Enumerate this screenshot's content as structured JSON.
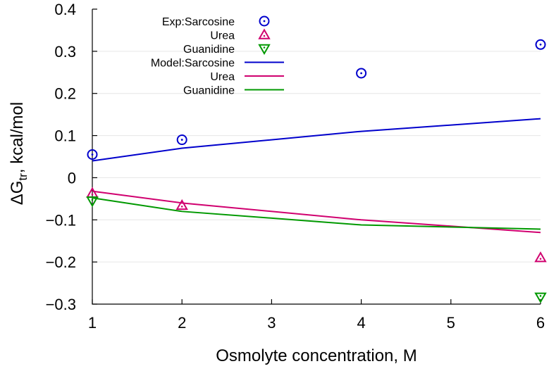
{
  "chart_data": {
    "type": "scatter",
    "xlabel": "Osmolyte concentration, M",
    "ylabel": {
      "delta": "ΔG",
      "sub": "tr",
      "rest": ", kcal/mol"
    },
    "xlim": [
      1,
      6
    ],
    "ylim": [
      -0.3,
      0.4
    ],
    "x_ticks": [
      1,
      2,
      3,
      4,
      5,
      6
    ],
    "y_ticks": [
      -0.3,
      -0.2,
      -0.1,
      0,
      0.1,
      0.2,
      0.3,
      0.4
    ],
    "y_tick_labels": [
      "−0.3",
      "−0.2",
      "−0.1",
      "0",
      "0.1",
      "0.2",
      "0.3",
      "0.4"
    ],
    "grid": "horizontal",
    "legend_position": "top-left",
    "series": [
      {
        "name": "Exp:Sarcosine",
        "kind": "points",
        "marker": "circle",
        "color": "#0000cc",
        "x": [
          1,
          2,
          4,
          6
        ],
        "y": [
          0.055,
          0.09,
          0.248,
          0.316
        ]
      },
      {
        "name": "Urea",
        "kind": "points",
        "marker": "triangle-up",
        "color": "#d0006f",
        "x": [
          1,
          2,
          6
        ],
        "y": [
          -0.037,
          -0.066,
          -0.19
        ]
      },
      {
        "name": "Guanidine",
        "kind": "points",
        "marker": "triangle-down",
        "color": "#009900",
        "x": [
          1,
          6
        ],
        "y": [
          -0.055,
          -0.283
        ]
      },
      {
        "name": "Model:Sarcosine",
        "kind": "line",
        "color": "#0000cc",
        "x": [
          1,
          2,
          4,
          6
        ],
        "y": [
          0.04,
          0.07,
          0.11,
          0.14
        ]
      },
      {
        "name": "Urea",
        "kind": "line",
        "color": "#d0006f",
        "x": [
          1,
          2,
          4,
          6
        ],
        "y": [
          -0.032,
          -0.06,
          -0.1,
          -0.13
        ]
      },
      {
        "name": "Guanidine",
        "kind": "line",
        "color": "#009900",
        "x": [
          1,
          2,
          4,
          6
        ],
        "y": [
          -0.048,
          -0.08,
          -0.112,
          -0.122
        ]
      }
    ]
  }
}
